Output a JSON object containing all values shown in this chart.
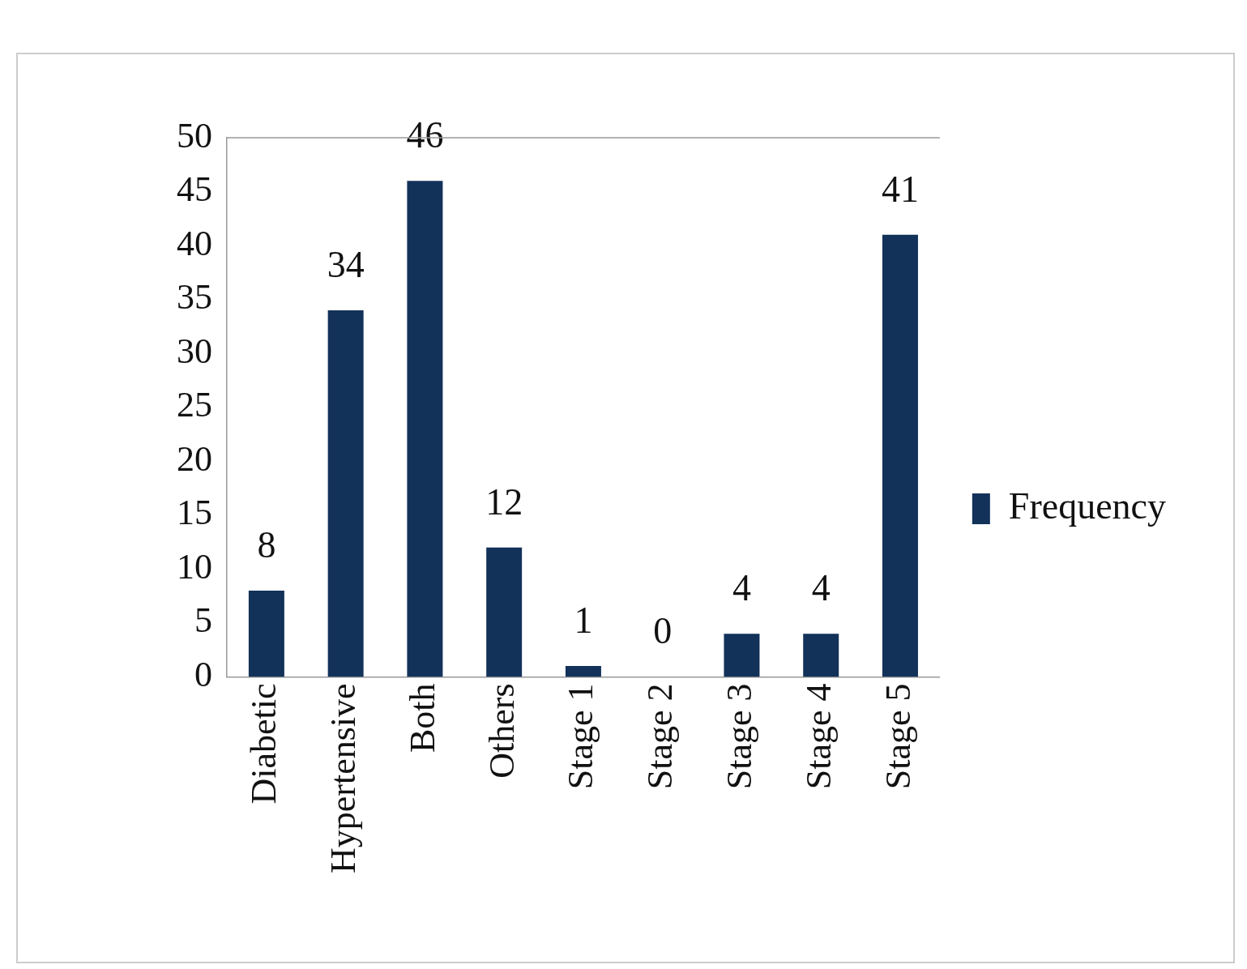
{
  "chart_data": {
    "type": "bar",
    "categories": [
      "Diabetic",
      "Hypertensive",
      "Both",
      "Others",
      "Stage 1",
      "Stage 2",
      "Stage 3",
      "Stage 4",
      "Stage 5"
    ],
    "series": [
      {
        "name": "Frequency",
        "color": "#13325a",
        "values": [
          8,
          34,
          46,
          12,
          1,
          0,
          4,
          4,
          41
        ]
      }
    ],
    "ylim": [
      0,
      50
    ],
    "yticks": [
      0,
      5,
      10,
      15,
      20,
      25,
      30,
      35,
      40,
      45,
      50
    ],
    "grid": false,
    "legend": "right",
    "data_labels": true
  }
}
